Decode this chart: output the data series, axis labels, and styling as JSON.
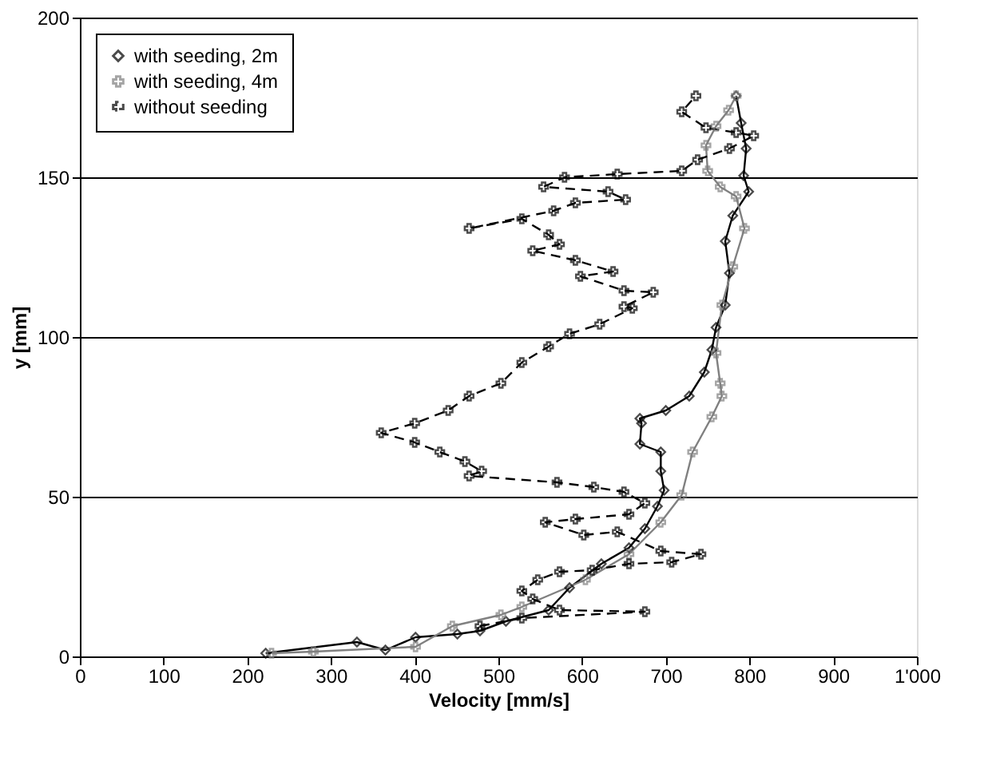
{
  "chart_data": {
    "type": "line",
    "xlabel": "Velocity [mm/s]",
    "ylabel": "y [mm]",
    "xlim": [
      0,
      1000
    ],
    "ylim": [
      0,
      200
    ],
    "xticks": [
      0,
      100,
      200,
      300,
      400,
      500,
      600,
      700,
      800,
      900,
      {
        "value": 1000,
        "label": "1'000"
      }
    ],
    "yticks": [
      0,
      50,
      100,
      150,
      200
    ],
    "grid": "y",
    "legend": "top left",
    "series": [
      {
        "name": "with seeding, 2m",
        "color": "#000000",
        "marker": "diamond",
        "line_style": "solid",
        "x": [
          222,
          331,
          365,
          401,
          451,
          478,
          509,
          560,
          585,
          623,
          656,
          675,
          690,
          698,
          694,
          694,
          669,
          671,
          669,
          700,
          728,
          746,
          755,
          760,
          771,
          776,
          771,
          780,
          799,
          793,
          796,
          790,
          784
        ],
        "values": [
          1,
          4.5,
          2,
          6,
          7,
          8,
          11,
          14.5,
          21.5,
          29,
          34,
          40,
          47,
          52,
          58,
          64,
          66.5,
          73,
          74.5,
          77,
          81.5,
          89,
          96,
          103,
          110,
          120,
          130,
          138,
          145.5,
          150.5,
          159,
          167,
          175.5
        ]
      },
      {
        "name": "with seeding, 4m",
        "color": "#808080",
        "marker": "cross",
        "line_style": "solid",
        "x": [
          229,
          279,
          401,
          445,
          503,
          528,
          604,
          656,
          694,
          719,
          732,
          755,
          767,
          765,
          760,
          767,
          780,
          794,
          784,
          765,
          750,
          748,
          760,
          775,
          784
        ],
        "values": [
          1,
          1.5,
          3,
          9.5,
          13,
          15.5,
          24,
          32,
          42,
          50.5,
          64,
          75,
          81.5,
          85.5,
          95,
          110,
          122,
          134,
          144,
          147,
          152,
          160,
          166,
          171,
          175.5
        ]
      },
      {
        "name": "without seeding",
        "color": "#000000",
        "marker": "cross",
        "line_style": "dashed",
        "x": [
          478,
          528,
          675,
          573,
          541,
          528,
          547,
          573,
          612,
          656,
          707,
          742,
          694,
          642,
          602,
          556,
          592,
          656,
          675,
          650,
          614,
          570,
          465,
          480,
          460,
          430,
          400,
          360,
          400,
          440,
          465,
          503,
          528,
          560,
          585,
          621,
          660,
          650,
          685,
          650,
          598,
          637,
          592,
          541,
          573,
          560,
          528,
          465,
          566,
          592,
          652,
          631,
          554,
          579,
          642,
          719,
          738,
          776,
          805,
          784,
          748,
          719,
          736
        ],
        "values": [
          9.5,
          12,
          14,
          14.5,
          18,
          20.5,
          24,
          26.5,
          27,
          29,
          29.5,
          32,
          33,
          39,
          38,
          42,
          43,
          44.5,
          48,
          51.5,
          53,
          54.5,
          56.5,
          58,
          61,
          64,
          67,
          70,
          73,
          77,
          81.5,
          85.5,
          92,
          97,
          101,
          104,
          109,
          109.5,
          114,
          114.5,
          119,
          120.5,
          124,
          127,
          129,
          132,
          137,
          134,
          139.5,
          142,
          143,
          145.5,
          147,
          150,
          151,
          152,
          155.5,
          159,
          163,
          164,
          165.5,
          170.5,
          175.5
        ]
      }
    ]
  }
}
